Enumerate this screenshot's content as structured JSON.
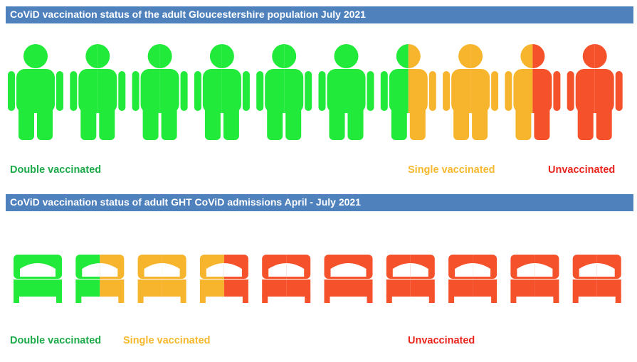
{
  "sections": [
    {
      "title": "CoViD vaccination status of the adult Gloucestershire population July 2021",
      "labels": [
        "Double vaccinated",
        "Single vaccinated",
        "Unvaccinated"
      ]
    },
    {
      "title": "CoViD vaccination status of adult GHT CoViD admissions April - July 2021",
      "labels": [
        "Double vaccinated",
        "Single vaccinated",
        "Unvaccinated"
      ]
    }
  ]
}
